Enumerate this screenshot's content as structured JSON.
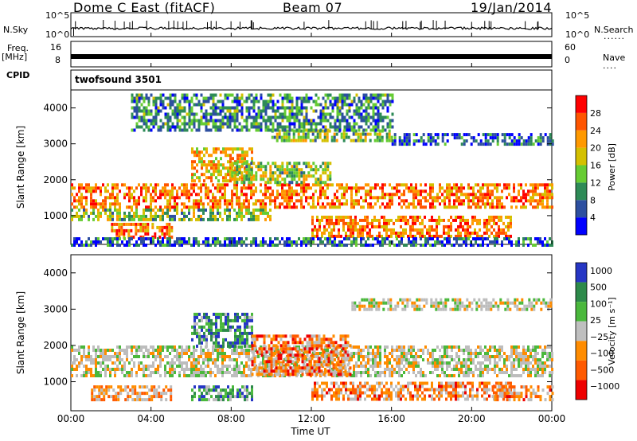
{
  "header": {
    "title": "Dome C East (fitACF)",
    "beam": "Beam 07",
    "date": "19/Jan/2014"
  },
  "side": {
    "nsky": "N.Sky",
    "nsearch": "N.Search",
    "freq": "Freq.",
    "freq_unit": "[MHz]",
    "nave": "Nave",
    "cpid": "CPID",
    "dots": "......",
    "dots2": "...."
  },
  "noise_axis": {
    "top": "10^5",
    "bottom": "10^0",
    "top_r": "10^5",
    "bottom_r": "10^0"
  },
  "freq_axis": {
    "left_ticks": [
      "16",
      "8"
    ],
    "right_ticks": [
      "60",
      "0"
    ]
  },
  "cpid_text": "twofsound 3501",
  "colors": {
    "power": [
      "#0000ff",
      "#2d4fa0",
      "#2e8b57",
      "#66cc33",
      "#d4c000",
      "#ff9900",
      "#ff5500",
      "#ff0000"
    ],
    "velocity": [
      "#2636c4",
      "#2d8a4a",
      "#4ab83c",
      "#bfbfbf",
      "#ff8c00",
      "#ff5a00",
      "#ee0000"
    ],
    "noise_trace": "#000000",
    "gray_velocity": "#bdbdbd"
  },
  "chart_data": [
    {
      "type": "heatmap",
      "name": "power",
      "ylabel": "Slant Range [km]",
      "yticks": [
        "1000",
        "2000",
        "3000",
        "4000"
      ],
      "ylim": [
        200,
        4500
      ],
      "xlim": [
        0,
        24
      ],
      "colorbar": {
        "label": "Power [dB]",
        "ticks": [
          "4",
          "8",
          "12",
          "16",
          "20",
          "24",
          "28"
        ],
        "range": [
          0,
          30
        ]
      },
      "bands": [
        {
          "t0": 0,
          "t1": 24,
          "r0": 1200,
          "r1": 1900,
          "level": 0.75
        },
        {
          "t0": 0,
          "t1": 10,
          "r0": 900,
          "r1": 1200,
          "level": 0.45
        },
        {
          "t0": 2,
          "t1": 5,
          "r0": 400,
          "r1": 800,
          "level": 0.8
        },
        {
          "t0": 6,
          "t1": 9,
          "r0": 2000,
          "r1": 2900,
          "level": 0.65
        },
        {
          "t0": 8,
          "t1": 13,
          "r0": 1900,
          "r1": 2500,
          "level": 0.45
        },
        {
          "t0": 10,
          "t1": 16,
          "r0": 3100,
          "r1": 3400,
          "level": 0.45
        },
        {
          "t0": 12,
          "t1": 22,
          "r0": 400,
          "r1": 1000,
          "level": 0.75
        },
        {
          "t0": 16,
          "t1": 24,
          "r0": 3000,
          "r1": 3300,
          "level": 0.2
        },
        {
          "t0": 3,
          "t1": 16,
          "r0": 3400,
          "r1": 4400,
          "level": 0.3
        },
        {
          "t0": 0,
          "t1": 24,
          "r0": 200,
          "r1": 400,
          "level": 0.2
        }
      ]
    },
    {
      "type": "heatmap",
      "name": "velocity",
      "ylabel": "Slant Range [km]",
      "yticks": [
        "1000",
        "2000",
        "3000",
        "4000"
      ],
      "ylim": [
        200,
        4500
      ],
      "xlim": [
        0,
        24
      ],
      "colorbar": {
        "label": "Velocity [m s⁻¹]",
        "ticks": [
          "1000",
          "500",
          "100",
          "25",
          "−25",
          "−100",
          "−500",
          "−1000"
        ],
        "range": [
          -1000,
          1000
        ]
      },
      "bands": [
        {
          "t0": 0,
          "t1": 24,
          "r0": 1200,
          "r1": 2000,
          "level": 0.5
        },
        {
          "t0": 1,
          "t1": 5,
          "r0": 500,
          "r1": 900,
          "level": 0.35
        },
        {
          "t0": 6,
          "t1": 9,
          "r0": 500,
          "r1": 900,
          "level": 0.75
        },
        {
          "t0": 6,
          "t1": 9,
          "r0": 2000,
          "r1": 2900,
          "level": 0.8
        },
        {
          "t0": 9,
          "t1": 14,
          "r0": 1200,
          "r1": 2300,
          "level": 0.25
        },
        {
          "t0": 12,
          "t1": 22,
          "r0": 500,
          "r1": 1000,
          "level": 0.3
        },
        {
          "t0": 14,
          "t1": 24,
          "r0": 3000,
          "r1": 3300,
          "level": 0.5
        },
        {
          "t0": 21,
          "t1": 24,
          "r0": 500,
          "r1": 900,
          "level": 0.3
        }
      ]
    }
  ],
  "time_axis": {
    "ticks": [
      "00:00",
      "04:00",
      "08:00",
      "12:00",
      "16:00",
      "20:00",
      "00:00"
    ],
    "label": "Time UT"
  }
}
